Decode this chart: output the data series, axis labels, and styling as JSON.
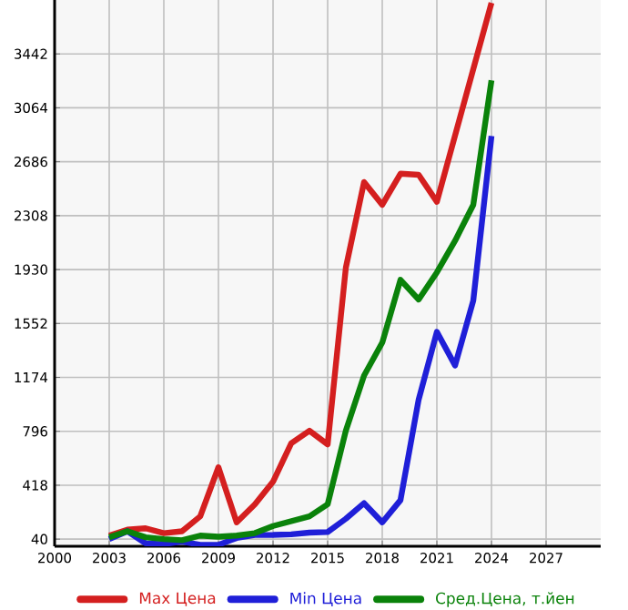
{
  "chart_data": {
    "type": "line",
    "xlim": [
      2000,
      2030
    ],
    "xticks": [
      2000,
      2003,
      2006,
      2009,
      2012,
      2015,
      2018,
      2021,
      2024,
      2027
    ],
    "ylim": [
      -10,
      3820
    ],
    "yticks": [
      40,
      418,
      796,
      1174,
      1552,
      1930,
      2308,
      2686,
      3064,
      3442
    ],
    "grid": true,
    "legend": "bottom",
    "line_style": "solid",
    "marker": "none",
    "series": [
      {
        "name": "Max Цена",
        "color": "#d41f1f",
        "x": [
          2003,
          2004,
          2005,
          2006,
          2007,
          2008,
          2009,
          2010,
          2011,
          2012,
          2013,
          2014,
          2015,
          2016,
          2017,
          2018,
          2019,
          2020,
          2021,
          2024
        ],
        "values": [
          65,
          107,
          116,
          82,
          95,
          200,
          544,
          158,
          284,
          443,
          712,
          800,
          704,
          1943,
          2544,
          2384,
          2602,
          2594,
          2405,
          3800
        ]
      },
      {
        "name": "Min Цена",
        "color": "#1f1fd8",
        "x": [
          2003,
          2004,
          2005,
          2006,
          2007,
          2008,
          2009,
          2010,
          2011,
          2012,
          2013,
          2014,
          2015,
          2016,
          2017,
          2018,
          2019,
          2020,
          2021,
          2022,
          2023,
          2024
        ],
        "values": [
          40,
          95,
          11,
          5,
          23,
          0,
          0,
          48,
          69,
          70,
          74,
          86,
          90,
          183,
          292,
          158,
          313,
          1019,
          1493,
          1258,
          1712,
          2866
        ]
      },
      {
        "name": "Сред.Цена, т.йен",
        "color": "#0a820a",
        "x": [
          2003,
          2004,
          2005,
          2006,
          2007,
          2008,
          2009,
          2010,
          2011,
          2012,
          2013,
          2014,
          2015,
          2016,
          2017,
          2018,
          2019,
          2020,
          2021,
          2022,
          2023,
          2024
        ],
        "values": [
          53,
          95,
          53,
          40,
          32,
          65,
          57,
          65,
          82,
          132,
          166,
          200,
          284,
          800,
          1187,
          1418,
          1858,
          1720,
          1910,
          2132,
          2384,
          3257
        ]
      }
    ]
  }
}
